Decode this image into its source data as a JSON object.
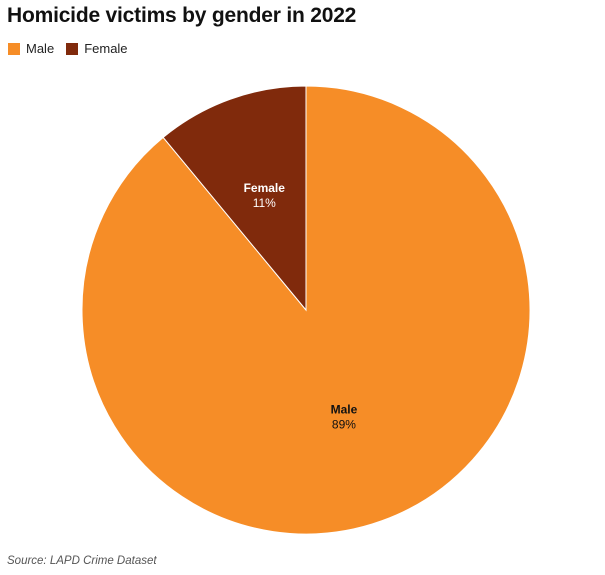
{
  "chart_data": {
    "type": "pie",
    "title": "Homicide victims by gender in 2022",
    "legend_position": "top-left",
    "slices": [
      {
        "label": "Male",
        "value": 89,
        "value_label": "89%",
        "color": "#f68d27"
      },
      {
        "label": "Female",
        "value": 11,
        "value_label": "11%",
        "color": "#802a0c"
      }
    ],
    "source": "Source: LAPD Crime Dataset"
  }
}
